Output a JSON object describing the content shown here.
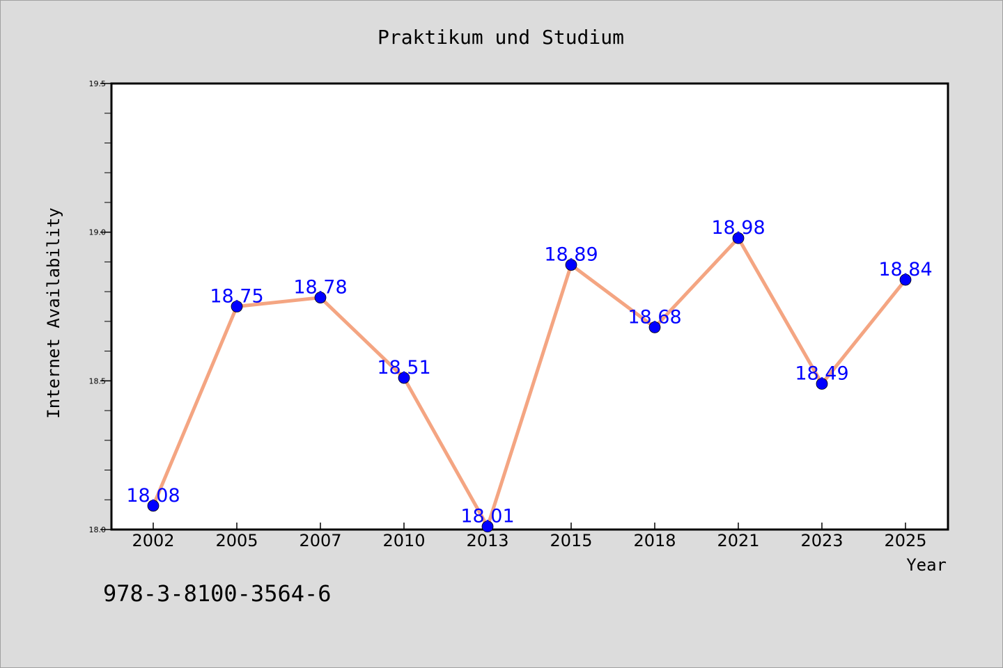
{
  "chart_data": {
    "type": "line",
    "title": "Praktikum und Studium",
    "xlabel": "Year",
    "ylabel": "Internet Availability",
    "categories": [
      "2002",
      "2005",
      "2007",
      "2010",
      "2013",
      "2015",
      "2018",
      "2021",
      "2023",
      "2025"
    ],
    "series": [
      {
        "values": [
          18.08,
          18.75,
          18.78,
          18.51,
          18.01,
          18.89,
          18.68,
          18.98,
          18.49,
          18.84
        ],
        "labels": [
          "18.08",
          "18.75",
          "18.78",
          "18.51",
          "18.01",
          "18.89",
          "18.68",
          "18.98",
          "18.49",
          "18.84"
        ],
        "line_color": "#f4a582",
        "marker_color": "#0000ff",
        "label_color": "#0000ff"
      }
    ],
    "ylim": [
      18.0,
      19.5
    ],
    "yticks": [
      "18.0",
      "18.5",
      "19.0",
      "19.5"
    ],
    "grid": false,
    "background": "#dcdcdc",
    "plot_background": "#ffffff"
  },
  "footer": {
    "isbn": "978-3-8100-3564-6"
  }
}
